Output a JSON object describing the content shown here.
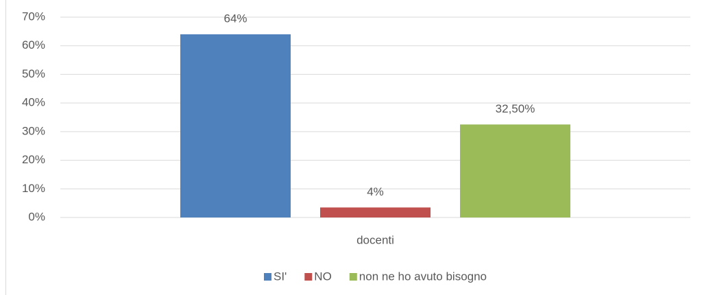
{
  "chart_data": {
    "type": "bar",
    "categories": [
      "docenti"
    ],
    "series": [
      {
        "name": "SI'",
        "color": "#4f81bd",
        "values": [
          64
        ],
        "value_labels": [
          "64%"
        ]
      },
      {
        "name": "NO",
        "color": "#c0504d",
        "values": [
          3.5
        ],
        "value_labels": [
          "4%"
        ]
      },
      {
        "name": "non ne ho avuto bisogno",
        "color": "#9bbb59",
        "values": [
          32.5
        ],
        "value_labels": [
          "32,50%"
        ]
      }
    ],
    "ylim": [
      0,
      70
    ],
    "yticks": [
      {
        "value": 0,
        "label": "0%"
      },
      {
        "value": 10,
        "label": "10%"
      },
      {
        "value": 20,
        "label": "20%"
      },
      {
        "value": 30,
        "label": "30%"
      },
      {
        "value": 40,
        "label": "40%"
      },
      {
        "value": 50,
        "label": "50%"
      },
      {
        "value": 60,
        "label": "60%"
      },
      {
        "value": 70,
        "label": "70%"
      }
    ],
    "grid": true,
    "legend": "bottom"
  }
}
